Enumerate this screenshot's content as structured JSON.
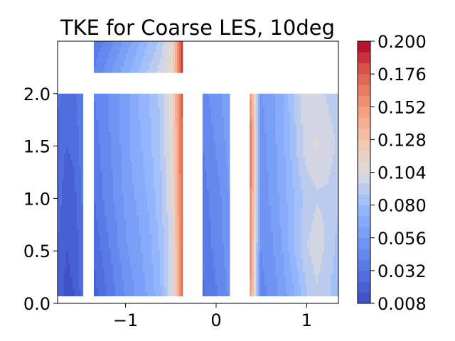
{
  "chart_data": {
    "type": "heatmap",
    "title": "TKE for Coarse LES, 10deg",
    "xlabel": "",
    "ylabel": "",
    "xlim": [
      -1.75,
      1.35
    ],
    "ylim": [
      0.0,
      2.5
    ],
    "x_ticks": [
      -1,
      0,
      1
    ],
    "x_tick_labels": [
      "−1",
      "0",
      "1"
    ],
    "y_ticks": [
      0.0,
      0.5,
      1.0,
      1.5,
      2.0
    ],
    "y_tick_labels": [
      "0.0",
      "0.5",
      "1.0",
      "1.5",
      "2.0"
    ],
    "colormap": "coolwarm",
    "colorbar": {
      "range": [
        0.008,
        0.2
      ],
      "ticks": [
        0.008,
        0.032,
        0.056,
        0.08,
        0.104,
        0.128,
        0.152,
        0.176,
        0.2
      ],
      "tick_labels": [
        "0.008",
        "0.032",
        "0.056",
        "0.080",
        "0.104",
        "0.128",
        "0.152",
        "0.176",
        "0.200"
      ],
      "levels": 24
    },
    "regions": [
      {
        "x": [
          -1.75,
          -1.47
        ],
        "y": [
          0.07,
          2.0
        ],
        "values": [
          [
            0.022,
            0.014,
            0.016,
            0.028
          ],
          [
            0.024,
            0.016,
            0.018,
            0.03
          ],
          [
            0.028,
            0.02,
            0.022,
            0.034
          ],
          [
            0.03,
            0.024,
            0.026,
            0.038
          ],
          [
            0.034,
            0.028,
            0.03,
            0.04
          ]
        ]
      },
      {
        "x": [
          -1.35,
          -0.37
        ],
        "y": [
          0.07,
          2.0
        ],
        "values": [
          [
            0.02,
            0.03,
            0.04,
            0.05,
            0.058,
            0.066,
            0.078,
            0.1,
            0.17
          ],
          [
            0.026,
            0.036,
            0.046,
            0.056,
            0.062,
            0.07,
            0.082,
            0.1,
            0.17
          ],
          [
            0.032,
            0.042,
            0.05,
            0.06,
            0.066,
            0.074,
            0.086,
            0.104,
            0.175
          ],
          [
            0.036,
            0.044,
            0.052,
            0.062,
            0.07,
            0.078,
            0.088,
            0.108,
            0.175
          ],
          [
            0.04,
            0.046,
            0.054,
            0.062,
            0.072,
            0.08,
            0.09,
            0.11,
            0.18
          ]
        ]
      },
      {
        "x": [
          -1.35,
          -0.37
        ],
        "y": [
          2.2,
          2.5
        ],
        "values": [
          [
            0.04,
            0.05,
            0.06,
            0.07,
            0.08,
            0.09,
            0.1,
            0.11,
            0.19
          ],
          [
            0.035,
            0.04,
            0.05,
            0.06,
            0.07,
            0.08,
            0.09,
            0.11,
            0.19
          ]
        ]
      },
      {
        "x": [
          -0.15,
          0.15
        ],
        "y": [
          0.07,
          2.0
        ],
        "values": [
          [
            0.03,
            0.036,
            0.042,
            0.05
          ],
          [
            0.034,
            0.04,
            0.046,
            0.054
          ],
          [
            0.036,
            0.042,
            0.048,
            0.056
          ],
          [
            0.04,
            0.046,
            0.052,
            0.06
          ],
          [
            0.044,
            0.05,
            0.056,
            0.064
          ]
        ]
      },
      {
        "x": [
          0.37,
          1.35
        ],
        "y": [
          0.07,
          2.0
        ],
        "values": [
          [
            0.16,
            0.045,
            0.05,
            0.06,
            0.07,
            0.085,
            0.095,
            0.09,
            0.08
          ],
          [
            0.17,
            0.048,
            0.055,
            0.065,
            0.08,
            0.095,
            0.1,
            0.095,
            0.085
          ],
          [
            0.17,
            0.05,
            0.058,
            0.068,
            0.08,
            0.09,
            0.095,
            0.095,
            0.09
          ],
          [
            0.18,
            0.052,
            0.06,
            0.07,
            0.085,
            0.1,
            0.105,
            0.1,
            0.095
          ],
          [
            0.16,
            0.055,
            0.062,
            0.072,
            0.088,
            0.1,
            0.1,
            0.095,
            0.09
          ]
        ]
      }
    ]
  }
}
